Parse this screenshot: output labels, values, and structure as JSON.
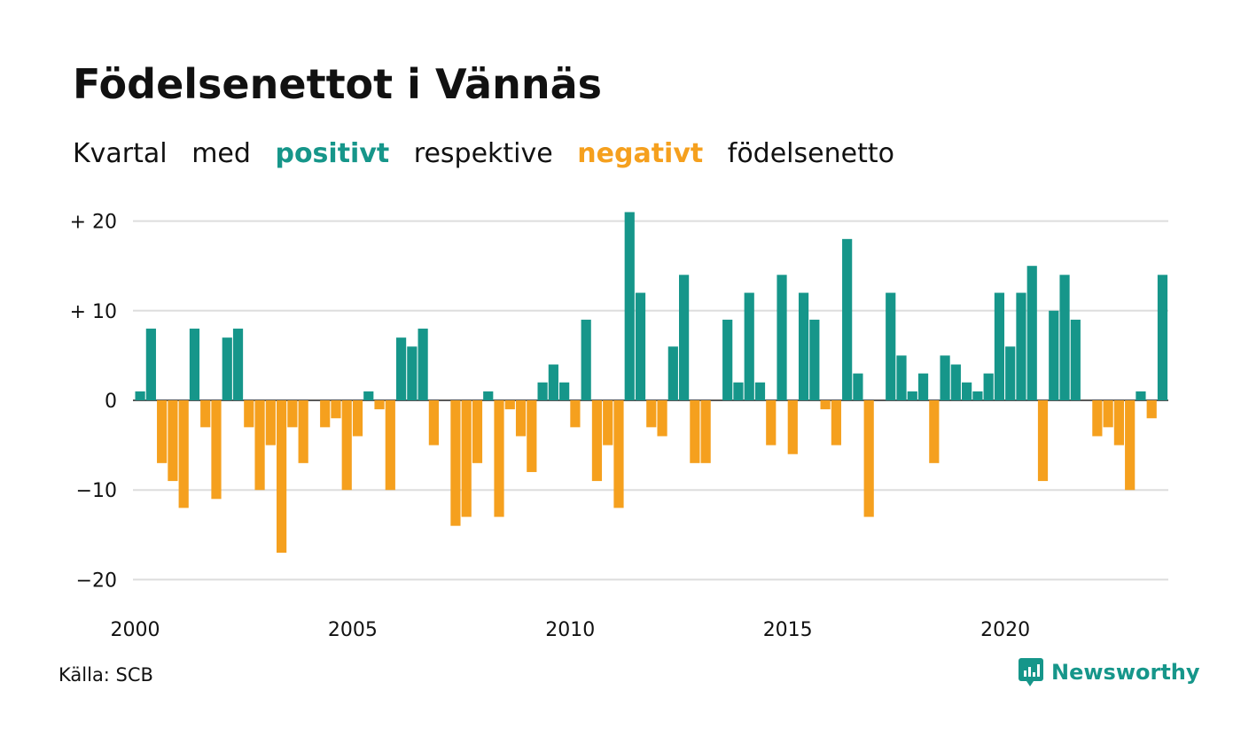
{
  "header": {
    "title": "Födelsenettot i Vännäs",
    "subtitle_parts": [
      "Kvartal",
      "med",
      "positivt",
      "respektive",
      "negativt",
      "födelsenetto"
    ]
  },
  "colors": {
    "positive": "#16968a",
    "negative": "#f5a01e",
    "grid": "#dddddd",
    "text": "#111111"
  },
  "chart_data": {
    "type": "bar",
    "x_start": "2000 Q1",
    "frequency": "quarterly",
    "values": [
      1,
      8,
      -7,
      -9,
      -12,
      8,
      -3,
      -11,
      7,
      8,
      -3,
      -10,
      -5,
      -17,
      -3,
      -7,
      0,
      -3,
      -2,
      -10,
      -4,
      1,
      -1,
      -10,
      7,
      6,
      8,
      -5,
      0,
      -14,
      -13,
      -7,
      1,
      -13,
      -1,
      -4,
      -8,
      2,
      4,
      2,
      -3,
      9,
      -9,
      -5,
      -12,
      21,
      12,
      -3,
      -4,
      6,
      14,
      -7,
      -7,
      0,
      9,
      2,
      12,
      2,
      -5,
      14,
      -6,
      12,
      9,
      -1,
      -5,
      18,
      3,
      -13,
      0,
      12,
      5,
      1,
      3,
      -7,
      5,
      4,
      2,
      1,
      3,
      12,
      6,
      12,
      15,
      -9,
      10,
      14,
      9,
      0,
      -4,
      -3,
      -5,
      -10,
      1,
      -2,
      14
    ],
    "ylim": [
      -20,
      21
    ],
    "y_ticks": [
      20,
      10,
      0,
      -10,
      -20
    ],
    "y_tick_labels": [
      "+ 20",
      "+ 10",
      "0",
      "−10",
      "−20"
    ],
    "x_ticks": [
      2000,
      2005,
      2010,
      2015,
      2020
    ],
    "x_tick_labels": [
      "2000",
      "2005",
      "2010",
      "2015",
      "2020"
    ],
    "grid": "horizontal"
  },
  "footer": {
    "source": "Källa: SCB",
    "brand": "Newsworthy",
    "brand_icon": "newsworthy-logo-icon"
  }
}
